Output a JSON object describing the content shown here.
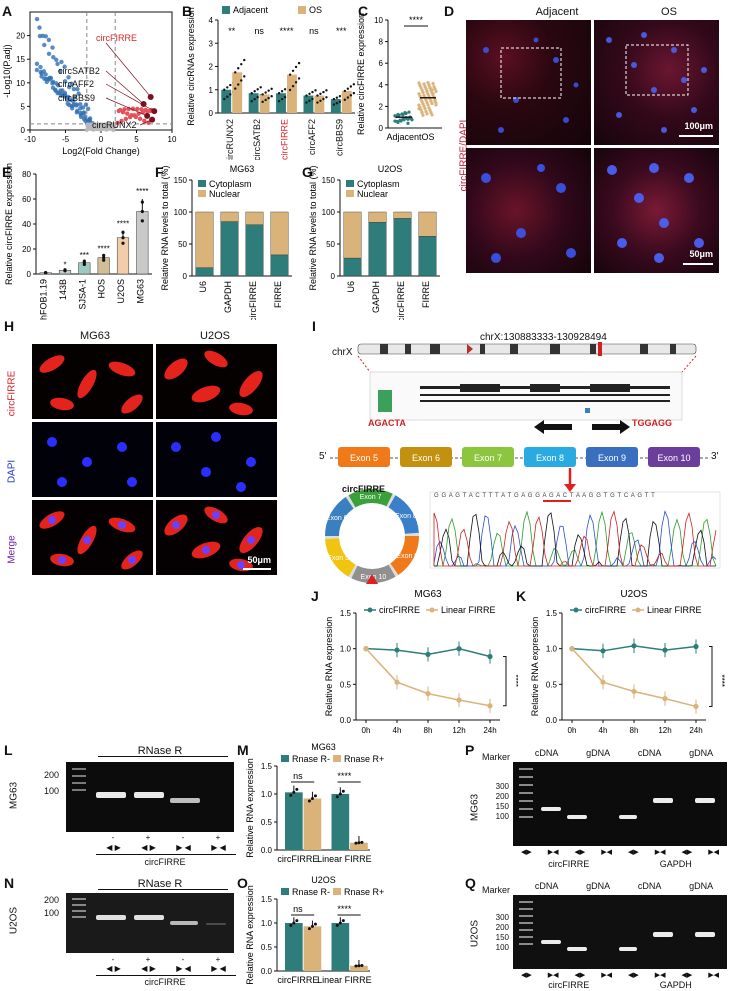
{
  "panels": {
    "A": "A",
    "B": "B",
    "C": "C",
    "D": "D",
    "E": "E",
    "F": "F",
    "G": "G",
    "H": "H",
    "I": "I",
    "J": "J",
    "K": "K",
    "L": "L",
    "M": "M",
    "N": "N",
    "O": "O",
    "P": "P",
    "Q": "Q"
  },
  "colors": {
    "teal": "#2e7d7a",
    "tan": "#d9b37a",
    "red": "#d7262a",
    "blue": "#2f6fb3",
    "grey": "#b9b9b9"
  },
  "chart_data": [
    {
      "id": "A",
      "type": "scatter",
      "xlabel": "Log2(Fold Change)",
      "ylabel": "-Log10(P.adj)",
      "xlim": [
        -10,
        10
      ],
      "ylim": [
        0,
        25
      ],
      "xticks": [
        "-10",
        "-5",
        "0",
        "5",
        "10"
      ],
      "yticks": [
        "0",
        "5",
        "10",
        "15",
        "20"
      ],
      "labels": [
        "circFIRRE",
        "circSATB2",
        "circAFF2",
        "circBBS9",
        "circRUNX2"
      ],
      "highlight": [
        {
          "name": "circFIRRE",
          "x": 7,
          "y": 7
        },
        {
          "name": "circSATB2",
          "x": 6,
          "y": 5.5
        },
        {
          "name": "circAFF2",
          "x": 7.5,
          "y": 4
        },
        {
          "name": "circBBS9",
          "x": 6.5,
          "y": 3
        },
        {
          "name": "circRUNX2",
          "x": 7.2,
          "y": 2.2
        }
      ]
    },
    {
      "id": "B",
      "type": "bar",
      "ylabel": "Relative circRNAs expression",
      "ylim": [
        0,
        4
      ],
      "yticks": [
        "0",
        "1",
        "2",
        "3",
        "4"
      ],
      "categories": [
        "circRUNX2",
        "circSATB2",
        "circFIRRE",
        "circAFF2",
        "circBBS9"
      ],
      "series": [
        {
          "name": "Adjacent",
          "values": [
            1.0,
            0.85,
            0.85,
            0.75,
            0.6
          ]
        },
        {
          "name": "OS",
          "values": [
            1.75,
            0.8,
            1.65,
            0.75,
            0.95
          ]
        }
      ],
      "significance": [
        "**",
        "ns",
        "****",
        "ns",
        "***"
      ]
    },
    {
      "id": "C",
      "type": "scatter",
      "ylabel": "Relative circFIRRE expression",
      "ylim": [
        0,
        10
      ],
      "yticks": [
        "0",
        "2",
        "4",
        "6",
        "8",
        "10"
      ],
      "categories": [
        "Adjacent",
        "OS"
      ],
      "values": [
        1.0,
        2.8
      ],
      "significance": "****"
    },
    {
      "id": "E",
      "type": "bar",
      "ylabel": "Relative circFIRRE expression",
      "ylim": [
        0,
        80
      ],
      "yticks": [
        "0",
        "20",
        "40",
        "60",
        "80"
      ],
      "categories": [
        "hFOB1.19",
        "143B",
        "SJSA-1",
        "HOS",
        "U2OS",
        "MG63"
      ],
      "values": [
        1,
        3,
        9,
        13,
        29,
        50
      ],
      "significance": [
        "",
        "*",
        "***",
        "****",
        "****",
        "****"
      ]
    },
    {
      "id": "F",
      "type": "bar",
      "title": "MG63",
      "ylabel": "Relative RNA levels to total (%)",
      "ylim": [
        0,
        150
      ],
      "yticks": [
        "0",
        "50",
        "100",
        "150"
      ],
      "categories": [
        "U6",
        "GAPDH",
        "circFIRRE",
        "FIRRE"
      ],
      "series": [
        {
          "name": "Cytoplasm",
          "values": [
            13,
            85,
            80,
            33
          ]
        },
        {
          "name": "Nuclear",
          "values": [
            87,
            15,
            20,
            67
          ]
        }
      ]
    },
    {
      "id": "G",
      "type": "bar",
      "title": "U2OS",
      "ylabel": "Relative RNA levels to total (%)",
      "ylim": [
        0,
        150
      ],
      "yticks": [
        "0",
        "50",
        "100",
        "150"
      ],
      "categories": [
        "U6",
        "GAPDH",
        "circFIRRE",
        "FIRRE"
      ],
      "series": [
        {
          "name": "Cytoplasm",
          "values": [
            28,
            84,
            90,
            62
          ]
        },
        {
          "name": "Nuclear",
          "values": [
            72,
            16,
            10,
            38
          ]
        }
      ]
    },
    {
      "id": "J",
      "type": "line",
      "title": "MG63",
      "ylabel": "Relative RNA expression",
      "ylim": [
        0,
        1.5
      ],
      "yticks": [
        "0.0",
        "0.5",
        "1.0",
        "1.5"
      ],
      "x": [
        "0h",
        "4h",
        "8h",
        "12h",
        "24h"
      ],
      "series": [
        {
          "name": "circFIRRE",
          "values": [
            1.0,
            0.98,
            0.92,
            1.0,
            0.89
          ]
        },
        {
          "name": "Linear FIRRE",
          "values": [
            1.0,
            0.53,
            0.37,
            0.28,
            0.2
          ]
        }
      ],
      "significance": "****"
    },
    {
      "id": "K",
      "type": "line",
      "title": "U2OS",
      "ylabel": "Relative RNA expression",
      "ylim": [
        0,
        1.5
      ],
      "yticks": [
        "0.0",
        "0.5",
        "1.0",
        "1.5"
      ],
      "x": [
        "0h",
        "4h",
        "8h",
        "12h",
        "24h"
      ],
      "series": [
        {
          "name": "circFIRRE",
          "values": [
            1.0,
            0.97,
            1.04,
            0.98,
            1.03
          ]
        },
        {
          "name": "Linear FIRRE",
          "values": [
            1.0,
            0.53,
            0.4,
            0.3,
            0.19
          ]
        }
      ],
      "significance": "****"
    },
    {
      "id": "M",
      "type": "bar",
      "title": "MG63",
      "ylabel": "Relative RNA expression",
      "ylim": [
        0,
        1.5
      ],
      "yticks": [
        "0.0",
        "0.5",
        "1.0",
        "1.5"
      ],
      "categories": [
        "circFIRRE",
        "Linear FIRRE"
      ],
      "series": [
        {
          "name": "Rnase R-",
          "values": [
            1.03,
            1.0
          ]
        },
        {
          "name": "Rnase R+",
          "values": [
            0.92,
            0.13
          ]
        }
      ],
      "significance": [
        "ns",
        "****"
      ]
    },
    {
      "id": "O",
      "type": "bar",
      "title": "U2OS",
      "ylabel": "Relative RNA expression",
      "ylim": [
        0,
        1.5
      ],
      "yticks": [
        "0.0",
        "0.5",
        "1.0",
        "1.5"
      ],
      "categories": [
        "circFIRRE",
        "Linear FIRRE"
      ],
      "series": [
        {
          "name": "Rnase R-",
          "values": [
            1.0,
            1.0
          ]
        },
        {
          "name": "Rnase R+",
          "values": [
            0.93,
            0.11
          ]
        }
      ],
      "significance": [
        "ns",
        "****"
      ]
    }
  ],
  "D": {
    "adjacent": "Adjacent",
    "os": "OS",
    "ylabel": "circFIRRE/DAPI",
    "scale1": "100μm",
    "scale2": "50μm"
  },
  "H": {
    "col1": "MG63",
    "col2": "U2OS",
    "row1": "circFIRRE",
    "row2": "DAPI",
    "row3": "Merge",
    "scale": "50μm"
  },
  "I": {
    "chr": "chrX",
    "coords": "chrX:130883333-130928494",
    "primer_left": "AGACTA",
    "primer_right": "TGGAGG",
    "exons": [
      "Exon 5",
      "Exon 6",
      "Exon 7",
      "Exon 8",
      "Exon 9",
      "Exon 10"
    ],
    "five": "5'",
    "three": "3'",
    "circ_label": "circFIRRE",
    "seq": "G G A G T A C T T T A T G A G G A G A C T A A G G T G T C A G T T"
  },
  "L": {
    "cell": "MG63",
    "header": "RNase R",
    "signs": [
      "-",
      "+",
      "-",
      "+"
    ],
    "markers": [
      "200",
      "100"
    ],
    "footer": "circFIRRE"
  },
  "N": {
    "cell": "U2OS",
    "header": "RNase R",
    "signs": [
      "-",
      "+",
      "-",
      "+"
    ],
    "markers": [
      "200",
      "100"
    ],
    "footer": "circFIRRE"
  },
  "P": {
    "cell": "MG63",
    "marker": "Marker",
    "groups": [
      "cDNA",
      "gDNA",
      "cDNA",
      "gDNA"
    ],
    "markers": [
      "300",
      "200",
      "150",
      "100"
    ],
    "footers": [
      "circFIRRE",
      "GAPDH"
    ]
  },
  "Q": {
    "cell": "U2OS",
    "marker": "Marker",
    "groups": [
      "cDNA",
      "gDNA",
      "cDNA",
      "gDNA"
    ],
    "markers": [
      "300",
      "200",
      "150",
      "100"
    ],
    "footers": [
      "circFIRRE",
      "GAPDH"
    ]
  }
}
